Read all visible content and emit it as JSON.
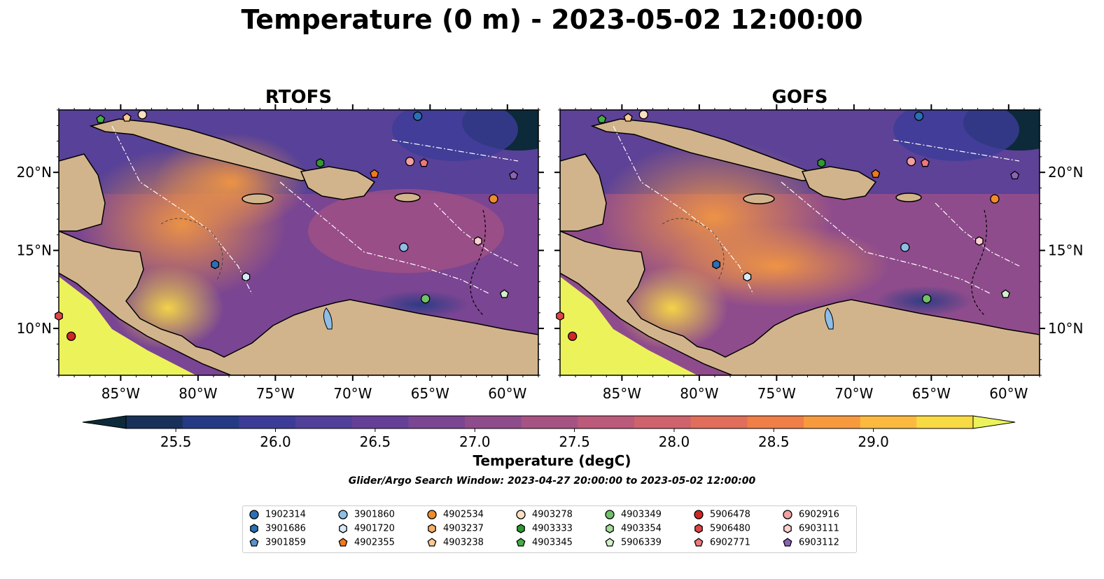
{
  "title": "Temperature (0 m) - 2023-05-02 12:00:00",
  "panels": [
    {
      "name": "RTOFS"
    },
    {
      "name": "GOFS"
    }
  ],
  "axes": {
    "lon_ticks": [
      "85°W",
      "80°W",
      "75°W",
      "70°W",
      "65°W",
      "60°W"
    ],
    "lat_ticks": [
      "20°N",
      "15°N",
      "10°N"
    ],
    "lon_range": [
      -89,
      -58
    ],
    "lat_range": [
      7,
      24
    ]
  },
  "colorbar": {
    "label": "Temperature (degC)",
    "ticks": [
      "25.5",
      "26.0",
      "26.5",
      "27.0",
      "27.5",
      "28.0",
      "28.5",
      "29.0"
    ],
    "min": 25.25,
    "max": 29.5,
    "colors": [
      "#0c2a3a",
      "#18305a",
      "#253a84",
      "#3c3c98",
      "#50409a",
      "#653f97",
      "#7a4592",
      "#8f4c8c",
      "#a65384",
      "#bb5a7a",
      "#ce626d",
      "#e06e5a",
      "#ef7e47",
      "#f79a3e",
      "#fbba3f",
      "#f8da45",
      "#ecf35a"
    ]
  },
  "search_window": "Glider/Argo Search Window: 2023-04-27 20:00:00 to 2023-05-02 12:00:00",
  "legend": [
    {
      "id": "1902314",
      "marker": "circle",
      "color": "#2a70b4"
    },
    {
      "id": "3901686",
      "marker": "hexagon",
      "color": "#2a70b4"
    },
    {
      "id": "3901859",
      "marker": "pentagon",
      "color": "#5a92cc"
    },
    {
      "id": "3901860",
      "marker": "circle",
      "color": "#8ebde6"
    },
    {
      "id": "4901720",
      "marker": "hexagon",
      "color": "#d6ebf7"
    },
    {
      "id": "4902355",
      "marker": "pentagon",
      "color": "#f07a1a"
    },
    {
      "id": "4902534",
      "marker": "circle",
      "color": "#f08c2a"
    },
    {
      "id": "4903237",
      "marker": "hexagon",
      "color": "#f6ae6b"
    },
    {
      "id": "4903238",
      "marker": "pentagon",
      "color": "#fbc892"
    },
    {
      "id": "4903278",
      "marker": "circle",
      "color": "#fde0c3"
    },
    {
      "id": "4903333",
      "marker": "hexagon",
      "color": "#2e9a30"
    },
    {
      "id": "4903345",
      "marker": "pentagon",
      "color": "#45ae44"
    },
    {
      "id": "4903349",
      "marker": "circle",
      "color": "#6fc26a"
    },
    {
      "id": "4903354",
      "marker": "hexagon",
      "color": "#a6dc9a"
    },
    {
      "id": "5906339",
      "marker": "pentagon",
      "color": "#d2f0cc"
    },
    {
      "id": "5906478",
      "marker": "circle",
      "color": "#cf2626"
    },
    {
      "id": "5906480",
      "marker": "hexagon",
      "color": "#e04545"
    },
    {
      "id": "6902771",
      "marker": "pentagon",
      "color": "#ee7878"
    },
    {
      "id": "6902916",
      "marker": "circle",
      "color": "#f3a0a0"
    },
    {
      "id": "6903111",
      "marker": "hexagon",
      "color": "#fbd0d0"
    },
    {
      "id": "6903112",
      "marker": "pentagon",
      "color": "#8a63b8"
    }
  ],
  "floats": [
    {
      "id": "4903345",
      "lon": -86.3,
      "lat": 23.4
    },
    {
      "id": "4903238",
      "lon": -84.6,
      "lat": 23.5
    },
    {
      "id": "4903278",
      "lon": -83.6,
      "lat": 23.7
    },
    {
      "id": "1902314",
      "lon": -65.8,
      "lat": 23.6
    },
    {
      "id": "4903333",
      "lon": -72.1,
      "lat": 20.6
    },
    {
      "id": "4902355",
      "lon": -68.6,
      "lat": 19.9
    },
    {
      "id": "6902916",
      "lon": -66.3,
      "lat": 20.7
    },
    {
      "id": "6902771",
      "lon": -65.4,
      "lat": 20.6
    },
    {
      "id": "6903112",
      "lon": -59.6,
      "lat": 19.8
    },
    {
      "id": "4902534",
      "lon": -60.9,
      "lat": 18.3
    },
    {
      "id": "6903111",
      "lon": -61.9,
      "lat": 15.6
    },
    {
      "id": "3901860",
      "lon": -66.7,
      "lat": 15.2
    },
    {
      "id": "3901686",
      "lon": -78.9,
      "lat": 14.1
    },
    {
      "id": "4901720",
      "lon": -76.9,
      "lat": 13.3
    },
    {
      "id": "5906339",
      "lon": -60.2,
      "lat": 12.2
    },
    {
      "id": "4903349",
      "lon": -65.3,
      "lat": 11.9
    },
    {
      "id": "5906478",
      "lon": -88.2,
      "lat": 9.5
    },
    {
      "id": "5906480",
      "lon": -89.0,
      "lat": 10.8
    }
  ]
}
